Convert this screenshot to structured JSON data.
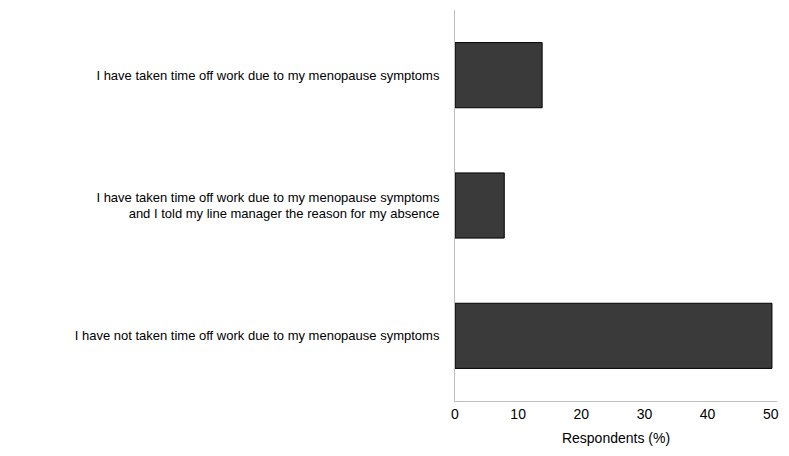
{
  "chart_data": {
    "type": "bar",
    "orientation": "horizontal",
    "categories": [
      "I have taken time off work due to my menopause symptoms",
      "I have taken time off work due to my menopause symptoms\nand I told my line manager the reason for my absence",
      "I have not taken time off work due to my menopause symptoms"
    ],
    "values": [
      13.8,
      7.8,
      50.2
    ],
    "color": "#3a3a3a",
    "x_label": "Respondents (%)",
    "xlim": [
      0,
      51
    ],
    "xticks": [
      0,
      10,
      20,
      30,
      40,
      50
    ],
    "grid": false
  }
}
